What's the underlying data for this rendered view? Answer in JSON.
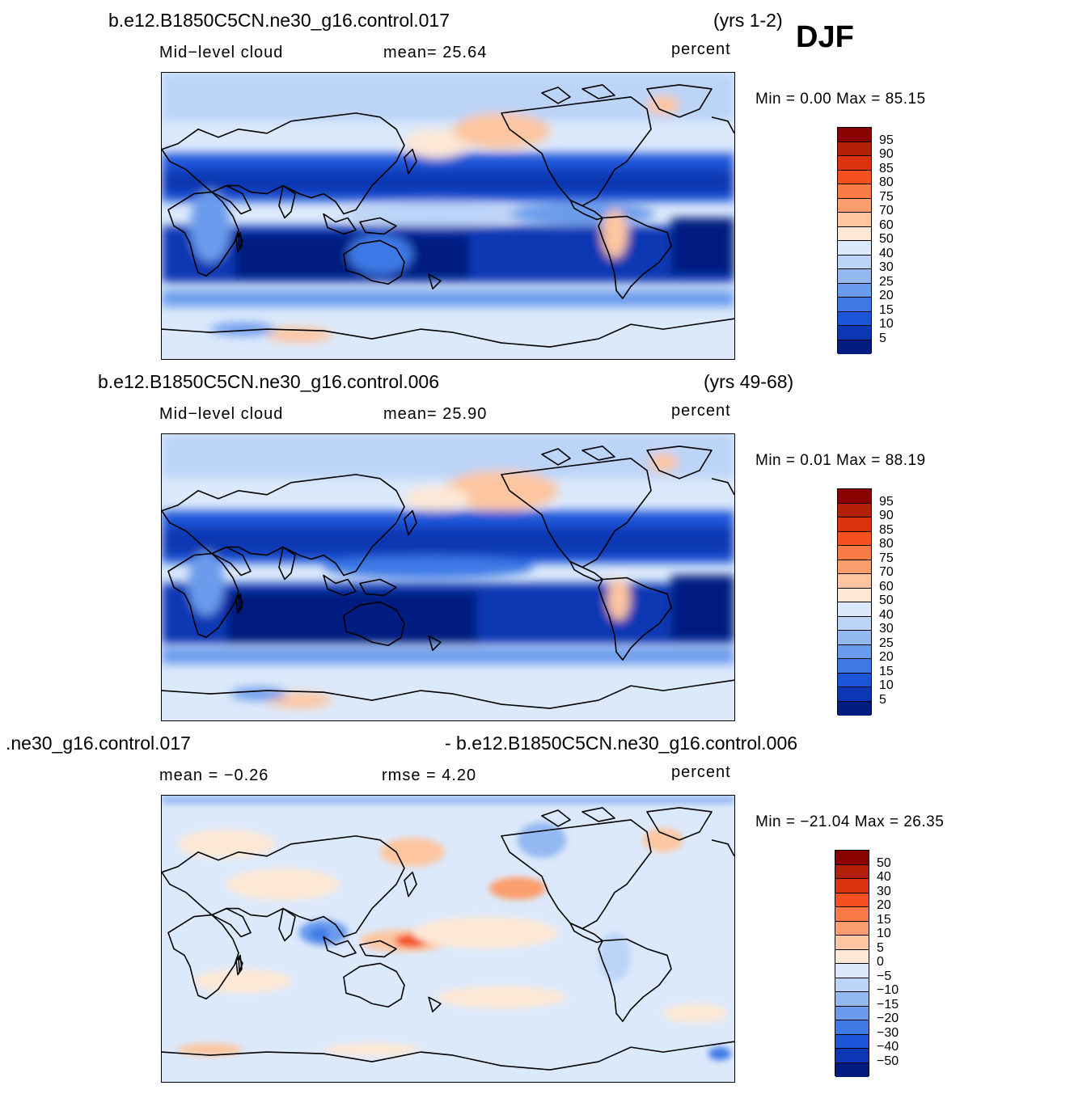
{
  "season": "DJF",
  "panels": [
    {
      "case_title": "b.e12.B1850C5CN.ne30_g16.control.017",
      "years": "(yrs 1-2)",
      "variable": "Mid−level cloud",
      "stat1": "mean=   25.64",
      "stat2": "",
      "units": "percent",
      "minmax": "Min =     0.00  Max =    85.15",
      "colorbar": {
        "labels": [
          "95",
          "90",
          "85",
          "80",
          "75",
          "70",
          "60",
          "50",
          "40",
          "30",
          "25",
          "20",
          "15",
          "10",
          "5"
        ],
        "colors": [
          "#8b0000",
          "#b3200a",
          "#db330f",
          "#f5501f",
          "#fb7a45",
          "#fc9e6d",
          "#fdc6a0",
          "#fde8d6",
          "#dce9fb",
          "#bcd4f8",
          "#93b8f2",
          "#6a9bec",
          "#3e79e6",
          "#1c55d8",
          "#0b37b4",
          "#001c80"
        ]
      },
      "map_summary": {
        "mean": 25.64,
        "min": 0.0,
        "max": 85.15
      }
    },
    {
      "case_title": "b.e12.B1850C5CN.ne30_g16.control.006",
      "years": "(yrs 49-68)",
      "variable": "Mid−level cloud",
      "stat1": "mean=   25.90",
      "stat2": "",
      "units": "percent",
      "minmax": "Min =     0.01  Max =    88.19",
      "colorbar": {
        "labels": [
          "95",
          "90",
          "85",
          "80",
          "75",
          "70",
          "60",
          "50",
          "40",
          "30",
          "25",
          "20",
          "15",
          "10",
          "5"
        ],
        "colors": [
          "#8b0000",
          "#b3200a",
          "#db330f",
          "#f5501f",
          "#fb7a45",
          "#fc9e6d",
          "#fdc6a0",
          "#fde8d6",
          "#dce9fb",
          "#bcd4f8",
          "#93b8f2",
          "#6a9bec",
          "#3e79e6",
          "#1c55d8",
          "#0b37b4",
          "#001c80"
        ]
      },
      "map_summary": {
        "mean": 25.9,
        "min": 0.01,
        "max": 88.19
      }
    },
    {
      "case_title": ".ne30_g16.control.017",
      "case_title_right": "- b.e12.B1850C5CN.ne30_g16.control.006",
      "variable": "",
      "stat1": "mean =   −0.26",
      "stat2": "rmse =     4.20",
      "units": "percent",
      "minmax": "Min =  −21.04  Max =    26.35",
      "colorbar": {
        "labels": [
          "50",
          "40",
          "30",
          "20",
          "15",
          "10",
          "5",
          "0",
          "−5",
          "−10",
          "−15",
          "−20",
          "−30",
          "−40",
          "−50"
        ],
        "colors": [
          "#8b0000",
          "#b3200a",
          "#db330f",
          "#f5501f",
          "#fb7a45",
          "#fc9e6d",
          "#fdc6a0",
          "#fde8d6",
          "#dce9fb",
          "#bcd4f8",
          "#93b8f2",
          "#6a9bec",
          "#3e79e6",
          "#1c55d8",
          "#0b37b4",
          "#001c80"
        ]
      },
      "map_summary": {
        "mean": -0.26,
        "rmse": 4.2,
        "min": -21.04,
        "max": 26.35
      }
    }
  ]
}
